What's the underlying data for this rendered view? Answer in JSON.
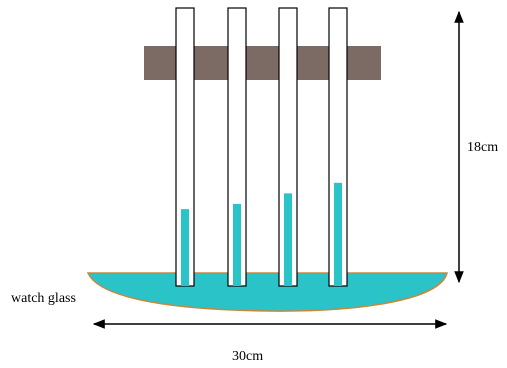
{
  "labels": {
    "watch_glass": "watch glass",
    "height": "18cm",
    "width": "30cm"
  },
  "colors": {
    "liquid": "#2ac4c8",
    "clamp": "#7c6a64",
    "tube_outline": "#000000",
    "rim": "#c8873a"
  },
  "capillary_rise_levels": [
    0.35,
    0.4,
    0.5,
    0.6
  ]
}
